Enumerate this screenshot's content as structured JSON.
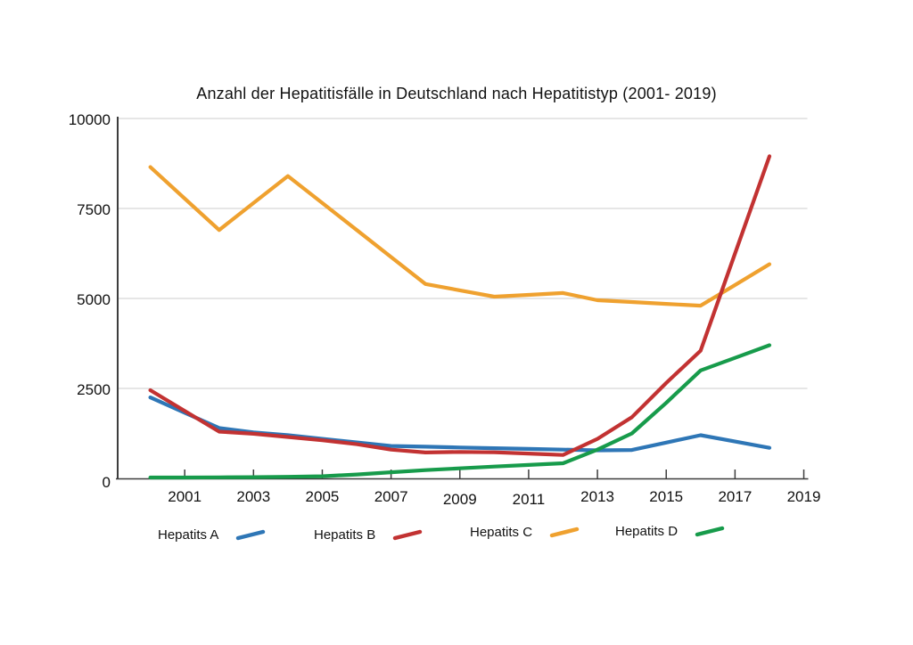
{
  "title": "Anzahl der Hepatitisfälle in Deutschland nach Hepatitistyp (2001- 2019)",
  "chart_data": {
    "type": "line",
    "title": "Anzahl der Hepatitisfälle in Deutschland nach Hepatitistyp (2001- 2019)",
    "x": [
      2001,
      2002,
      2003,
      2004,
      2005,
      2006,
      2007,
      2008,
      2009,
      2010,
      2011,
      2012,
      2013,
      2014,
      2015,
      2016,
      2017,
      2018,
      2019
    ],
    "series": [
      {
        "name": "Hepatits A",
        "color": "#2E76B6",
        "values": [
          2250,
          1825,
          1400,
          1280,
          1200,
          1100,
          1000,
          900,
          880,
          860,
          840,
          820,
          800,
          780,
          790,
          995,
          1200,
          1025,
          850
        ]
      },
      {
        "name": "Hepatits B",
        "color": "#C23232",
        "values": [
          2450,
          1875,
          1300,
          1240,
          1150,
          1060,
          950,
          800,
          720,
          735,
          725,
          690,
          650,
          1100,
          1700,
          2650,
          3550,
          6250,
          8950
        ]
      },
      {
        "name": "Hepatits C",
        "color": "#EFA12F",
        "values": [
          8650,
          7775,
          6900,
          7650,
          8400,
          7650,
          6900,
          6150,
          5400,
          5225,
          5050,
          5100,
          5150,
          4950,
          4900,
          4850,
          4800,
          5375,
          5950
        ]
      },
      {
        "name": "Hepatits D",
        "color": "#179B4B",
        "values": [
          25,
          25,
          30,
          35,
          45,
          60,
          110,
          170,
          230,
          280,
          330,
          375,
          420,
          800,
          1250,
          2100,
          3000,
          3350,
          3700
        ]
      }
    ],
    "y_axis": {
      "ticks": [
        0,
        2500,
        5000,
        7500,
        10000
      ],
      "range": [
        0,
        10000
      ],
      "tick_labels": [
        "0",
        "2500",
        "5000",
        "7500",
        "10000"
      ]
    },
    "x_axis": {
      "tick_labels": [
        "2001",
        "2003",
        "2005",
        "2007",
        "2009",
        "2011",
        "2013",
        "2015",
        "2017",
        "2019"
      ]
    },
    "grid": true,
    "legend_position": "bottom"
  },
  "legend": {
    "items": [
      {
        "label": "Hepatits A",
        "color": "#2E76B6"
      },
      {
        "label": "Hepatits B",
        "color": "#C23232"
      },
      {
        "label": "Hepatits C",
        "color": "#EFA12F"
      },
      {
        "label": "Hepatits D",
        "color": "#179B4B"
      }
    ]
  },
  "colors": {
    "background": "#ffffff",
    "grid": "#cccccc",
    "axis": "#3d3d3d",
    "text": "#111111"
  }
}
